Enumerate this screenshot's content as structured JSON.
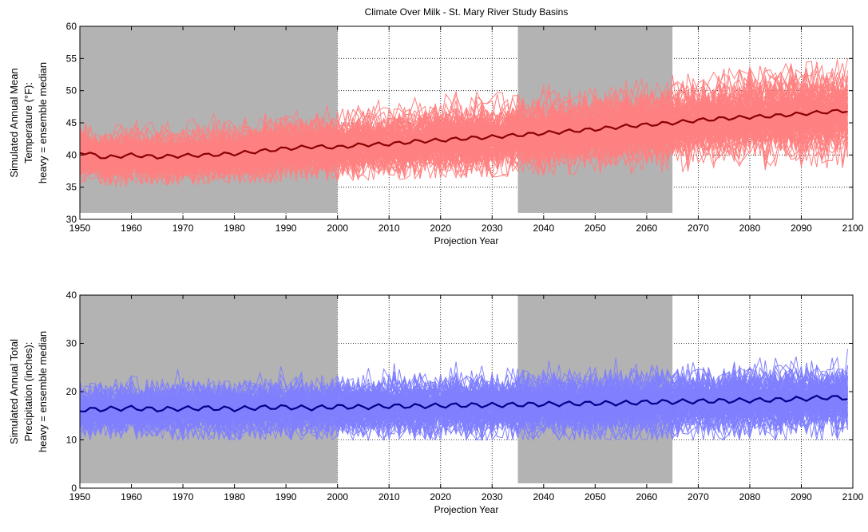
{
  "figure": {
    "title": "Climate Over Milk - St. Mary River Study Basins"
  },
  "chart_data": [
    {
      "type": "line",
      "title": "Climate Over Milk - St. Mary River Study Basins",
      "xlabel": "Projection Year",
      "ylabel": [
        "Simulated Annual Mean",
        "Temperature (°F):",
        "heavy = ensemble median"
      ],
      "xlim": [
        1950,
        2100
      ],
      "ylim": [
        30,
        60
      ],
      "xticks": [
        1950,
        1960,
        1970,
        1980,
        1990,
        2000,
        2010,
        2020,
        2030,
        2040,
        2050,
        2060,
        2070,
        2080,
        2090,
        2100
      ],
      "yticks": [
        30,
        35,
        40,
        45,
        50,
        55,
        60
      ],
      "grid": true,
      "shaded_periods": [
        {
          "x": [
            1950,
            2000
          ],
          "y": [
            31,
            60
          ]
        },
        {
          "x": [
            2035,
            2065
          ],
          "y": [
            31,
            60
          ]
        }
      ],
      "ensemble": {
        "color": "#ff8080",
        "x_range": [
          1950,
          2099
        ],
        "members": 112,
        "spread_start": [
          35,
          45
        ],
        "spread_end": [
          38,
          55
        ]
      },
      "median": {
        "color": "#8b0000",
        "x": [
          1950,
          1955,
          1960,
          1965,
          1970,
          1975,
          1980,
          1985,
          1990,
          1995,
          2000,
          2005,
          2010,
          2015,
          2020,
          2025,
          2030,
          2035,
          2040,
          2045,
          2050,
          2055,
          2060,
          2065,
          2070,
          2075,
          2080,
          2085,
          2090,
          2095,
          2099
        ],
        "values": [
          40.5,
          39.6,
          40.0,
          39.7,
          39.9,
          40.0,
          40.2,
          40.6,
          41.0,
          41.3,
          41.2,
          41.6,
          41.7,
          42.1,
          42.3,
          42.6,
          42.8,
          43.1,
          43.4,
          43.7,
          44.0,
          44.4,
          44.7,
          45.0,
          45.4,
          45.7,
          45.9,
          46.1,
          46.4,
          46.7,
          46.9
        ]
      }
    },
    {
      "type": "line",
      "title": "",
      "xlabel": "Projection Year",
      "ylabel": [
        "Simulated Annual Total",
        "Precipitation (inches):",
        "heavy = ensemble median"
      ],
      "xlim": [
        1950,
        2100
      ],
      "ylim": [
        0,
        40
      ],
      "xticks": [
        1950,
        1960,
        1970,
        1980,
        1990,
        2000,
        2010,
        2020,
        2030,
        2040,
        2050,
        2060,
        2070,
        2080,
        2090,
        2100
      ],
      "yticks": [
        0,
        10,
        20,
        30,
        40
      ],
      "grid": true,
      "shaded_periods": [
        {
          "x": [
            1950,
            2000
          ],
          "y": [
            1,
            40
          ]
        },
        {
          "x": [
            2035,
            2065
          ],
          "y": [
            1,
            40
          ]
        }
      ],
      "ensemble": {
        "color": "#8080ff",
        "x_range": [
          1950,
          2099
        ],
        "members": 112,
        "spread_start": [
          10,
          24
        ],
        "spread_end": [
          10,
          29
        ]
      },
      "median": {
        "color": "#00008b",
        "x": [
          1950,
          1955,
          1960,
          1965,
          1970,
          1975,
          1980,
          1985,
          1990,
          1995,
          2000,
          2005,
          2010,
          2015,
          2020,
          2025,
          2030,
          2035,
          2040,
          2045,
          2050,
          2055,
          2060,
          2065,
          2070,
          2075,
          2080,
          2085,
          2090,
          2095,
          2099
        ],
        "values": [
          16.2,
          16.4,
          16.6,
          16.3,
          16.5,
          16.6,
          16.4,
          16.7,
          16.8,
          16.6,
          16.9,
          16.8,
          17.0,
          17.0,
          17.1,
          17.2,
          17.2,
          17.3,
          17.4,
          17.5,
          17.6,
          17.6,
          17.8,
          17.9,
          18.0,
          18.1,
          18.2,
          18.3,
          18.5,
          18.8,
          18.7
        ]
      }
    }
  ]
}
